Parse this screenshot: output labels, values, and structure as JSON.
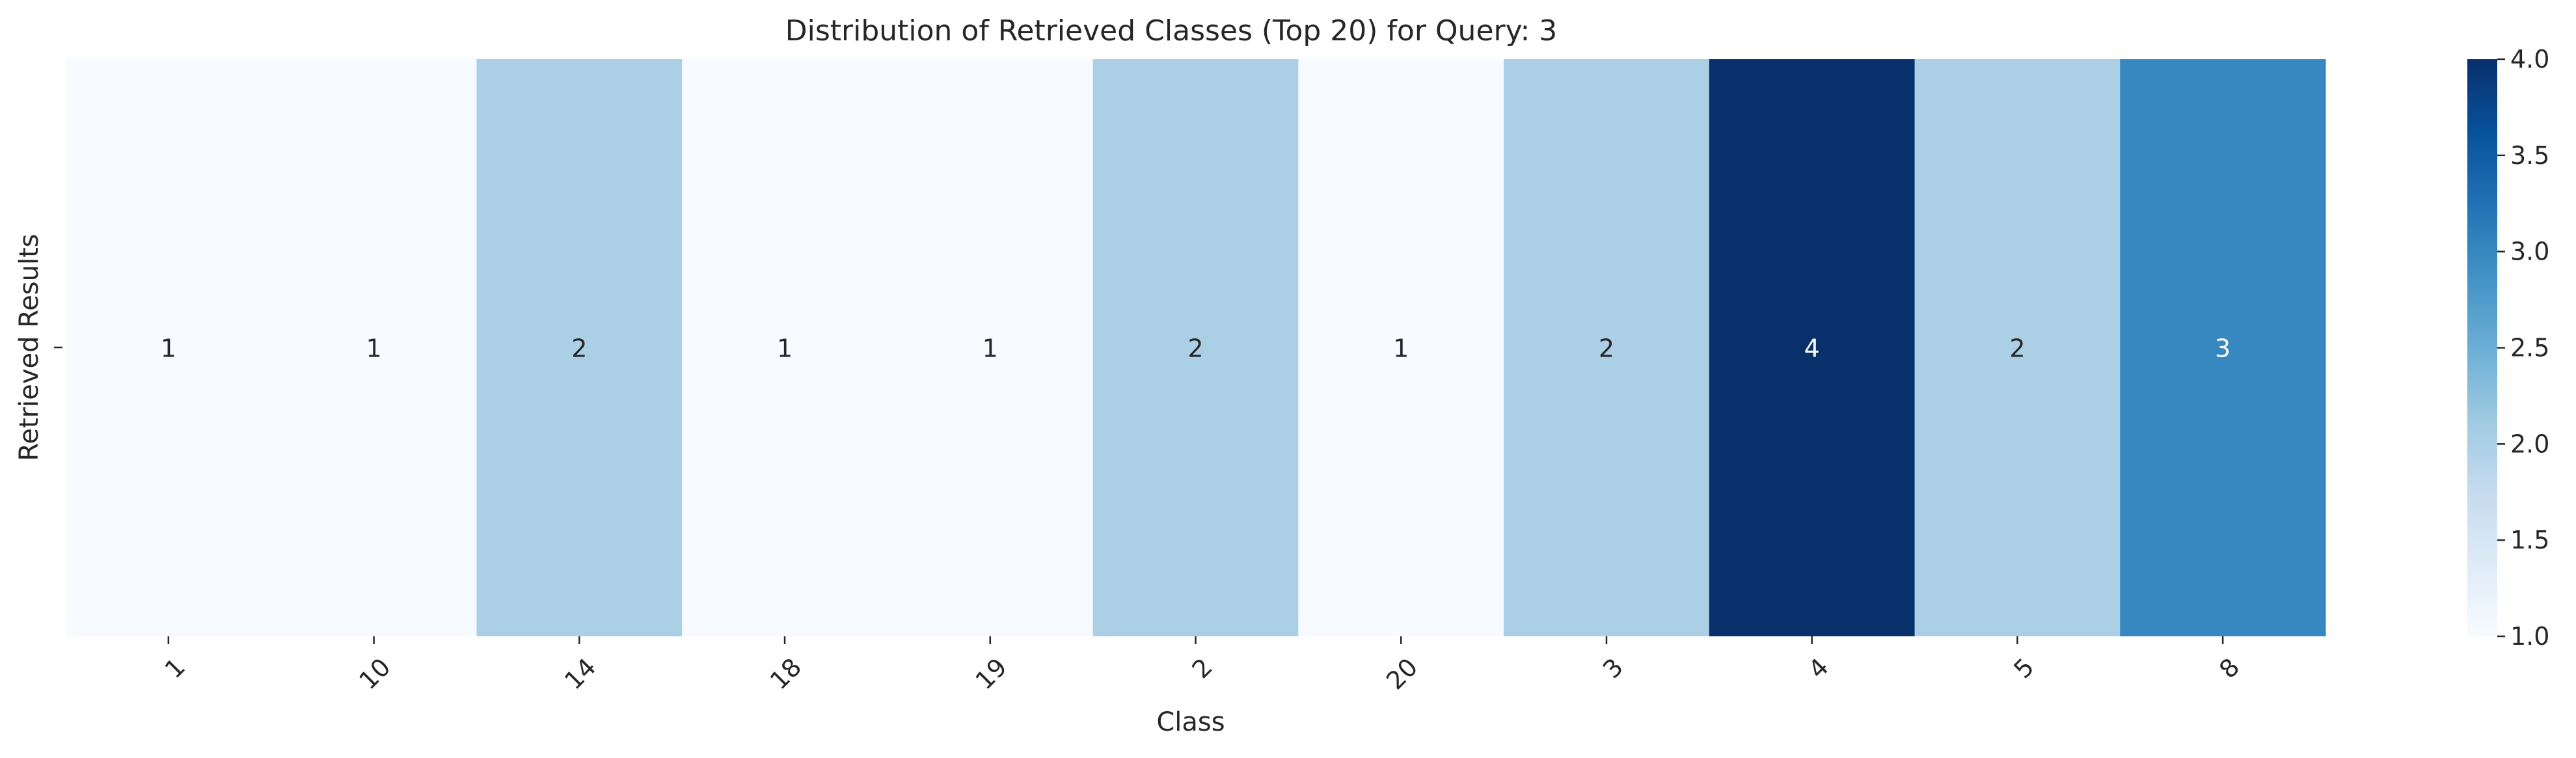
{
  "chart_data": {
    "type": "heatmap",
    "title": "Distribution of Retrieved Classes (Top 20) for Query: 3",
    "xlabel": "Class",
    "ylabel": "Retrieved Results",
    "categories": [
      "1",
      "10",
      "14",
      "18",
      "19",
      "2",
      "20",
      "3",
      "4",
      "5",
      "8"
    ],
    "values": [
      1,
      1,
      2,
      1,
      1,
      2,
      1,
      2,
      4,
      2,
      3
    ],
    "colormap": "Blues",
    "colorbar": {
      "range": [
        1.0,
        4.0
      ],
      "ticks": [
        "1.0",
        "1.5",
        "2.0",
        "2.5",
        "3.0",
        "3.5",
        "4.0"
      ]
    },
    "colors": {
      "1": "#f7fbff",
      "2": "#abcfe5",
      "3": "#3787c0",
      "4": "#08306b"
    },
    "annotation_colors": {
      "dark_text": "#262626",
      "light_text": "#ffffff"
    }
  }
}
